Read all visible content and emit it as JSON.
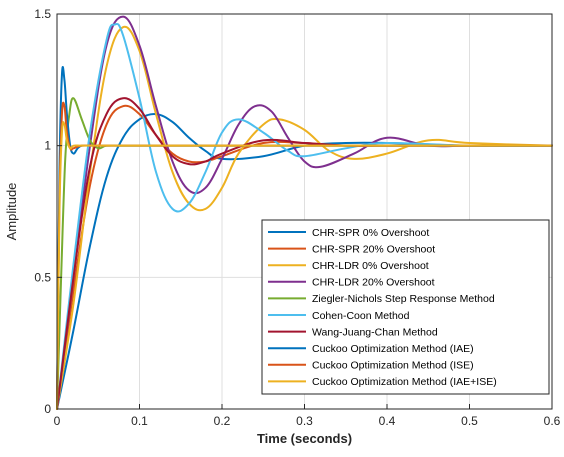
{
  "chart_data": {
    "type": "line",
    "title": "",
    "xlabel": "Time (seconds)",
    "ylabel": "Amplitude",
    "xlim": [
      0,
      0.6
    ],
    "ylim": [
      0,
      1.5
    ],
    "xticks": [
      0,
      0.1,
      0.2,
      0.3,
      0.4,
      0.5,
      0.6
    ],
    "yticks": [
      0,
      0.5,
      1,
      1.5
    ],
    "xtick_labels": [
      "0",
      "0.1",
      "0.2",
      "0.3",
      "0.4",
      "0.5",
      "0.6"
    ],
    "ytick_labels": [
      "0",
      "0.5",
      "1",
      "1.5"
    ],
    "grid": true,
    "legend_position": "bottom-right",
    "series": [
      {
        "name": "CHR-SPR 0% Overshoot",
        "color": "#0072BD",
        "x": [
          0,
          0.02,
          0.04,
          0.06,
          0.08,
          0.1,
          0.12,
          0.14,
          0.16,
          0.18,
          0.2,
          0.25,
          0.3,
          0.35,
          0.4,
          0.5,
          0.6
        ],
        "y": [
          0,
          0.3,
          0.62,
          0.88,
          1.03,
          1.1,
          1.12,
          1.09,
          1.03,
          0.98,
          0.95,
          0.96,
          1.0,
          1.01,
          1.01,
          1.0,
          1.0
        ]
      },
      {
        "name": "CHR-SPR 20% Overshoot",
        "color": "#D95319",
        "x": [
          0,
          0.02,
          0.04,
          0.06,
          0.08,
          0.1,
          0.12,
          0.14,
          0.16,
          0.18,
          0.2,
          0.25,
          0.3,
          0.35,
          0.4,
          0.5,
          0.6
        ],
        "y": [
          0,
          0.45,
          0.85,
          1.08,
          1.15,
          1.12,
          1.04,
          0.97,
          0.94,
          0.94,
          0.96,
          1.01,
          1.01,
          1.0,
          1.0,
          1.0,
          1.0
        ]
      },
      {
        "name": "CHR-LDR 0% Overshoot",
        "color": "#EDB120",
        "x": [
          0,
          0.02,
          0.04,
          0.06,
          0.08,
          0.1,
          0.12,
          0.14,
          0.16,
          0.18,
          0.2,
          0.22,
          0.25,
          0.27,
          0.3,
          0.33,
          0.36,
          0.4,
          0.45,
          0.5,
          0.6
        ],
        "y": [
          0,
          0.4,
          0.9,
          1.3,
          1.45,
          1.36,
          1.12,
          0.9,
          0.78,
          0.76,
          0.84,
          0.97,
          1.08,
          1.1,
          1.06,
          0.98,
          0.95,
          0.97,
          1.02,
          1.01,
          1.0
        ]
      },
      {
        "name": "CHR-LDR 20% Overshoot",
        "color": "#7E2F8E",
        "x": [
          0,
          0.02,
          0.04,
          0.06,
          0.08,
          0.1,
          0.12,
          0.14,
          0.16,
          0.18,
          0.2,
          0.22,
          0.24,
          0.26,
          0.28,
          0.3,
          0.32,
          0.36,
          0.4,
          0.45,
          0.5,
          0.6
        ],
        "y": [
          0,
          0.5,
          1.0,
          1.38,
          1.49,
          1.38,
          1.15,
          0.94,
          0.83,
          0.84,
          0.95,
          1.08,
          1.15,
          1.13,
          1.03,
          0.94,
          0.92,
          0.97,
          1.03,
          1.0,
          1.0,
          1.0
        ]
      },
      {
        "name": "Ziegler-Nichols Step Response Method",
        "color": "#77AC30",
        "x": [
          0,
          0.005,
          0.01,
          0.015,
          0.02,
          0.03,
          0.04,
          0.05,
          0.06,
          0.08,
          0.1,
          0.2,
          0.4,
          0.6
        ],
        "y": [
          0,
          0.5,
          0.95,
          1.12,
          1.18,
          1.1,
          1.02,
          0.99,
          1.0,
          1.0,
          1.0,
          1.0,
          1.0,
          1.0
        ]
      },
      {
        "name": "Cohen-Coon Method",
        "color": "#4DBEEE",
        "x": [
          0,
          0.02,
          0.04,
          0.06,
          0.07,
          0.08,
          0.1,
          0.12,
          0.14,
          0.16,
          0.18,
          0.2,
          0.22,
          0.25,
          0.28,
          0.3,
          0.35,
          0.4,
          0.5,
          0.6
        ],
        "y": [
          0,
          0.55,
          1.05,
          1.4,
          1.46,
          1.42,
          1.18,
          0.9,
          0.76,
          0.78,
          0.9,
          1.05,
          1.1,
          1.05,
          0.98,
          0.96,
          0.99,
          1.01,
          1.0,
          1.0
        ]
      },
      {
        "name": "Wang-Juang-Chan Method",
        "color": "#A2142F",
        "x": [
          0,
          0.02,
          0.04,
          0.06,
          0.08,
          0.1,
          0.12,
          0.14,
          0.16,
          0.18,
          0.2,
          0.25,
          0.3,
          0.35,
          0.4,
          0.5,
          0.6
        ],
        "y": [
          0,
          0.5,
          0.92,
          1.12,
          1.18,
          1.14,
          1.04,
          0.96,
          0.93,
          0.94,
          0.97,
          1.02,
          1.01,
          1.0,
          1.0,
          1.0,
          1.0
        ]
      },
      {
        "name": "Cuckoo Optimization Method (IAE)",
        "color": "#0072BD",
        "x": [
          0,
          0.003,
          0.006,
          0.009,
          0.012,
          0.016,
          0.02,
          0.025,
          0.03,
          0.04,
          0.05,
          0.1,
          0.3,
          0.6
        ],
        "y": [
          0,
          0.9,
          1.27,
          1.25,
          1.12,
          1.0,
          0.97,
          0.99,
          1.0,
          1.0,
          1.0,
          1.0,
          1.0,
          1.0
        ]
      },
      {
        "name": "Cuckoo Optimization Method (ISE)",
        "color": "#D95319",
        "x": [
          0,
          0.003,
          0.006,
          0.009,
          0.012,
          0.016,
          0.02,
          0.03,
          0.05,
          0.1,
          0.3,
          0.6
        ],
        "y": [
          0,
          0.8,
          1.12,
          1.15,
          1.05,
          0.99,
          0.99,
          1.0,
          1.0,
          1.0,
          1.0,
          1.0
        ]
      },
      {
        "name": "Cuckoo Optimization Method (IAE+ISE)",
        "color": "#EDB120",
        "x": [
          0,
          0.003,
          0.006,
          0.009,
          0.012,
          0.016,
          0.02,
          0.03,
          0.05,
          0.1,
          0.3,
          0.6
        ],
        "y": [
          0,
          0.75,
          1.05,
          1.08,
          1.02,
          0.99,
          1.0,
          1.0,
          1.0,
          1.0,
          1.0,
          1.0
        ]
      }
    ]
  }
}
